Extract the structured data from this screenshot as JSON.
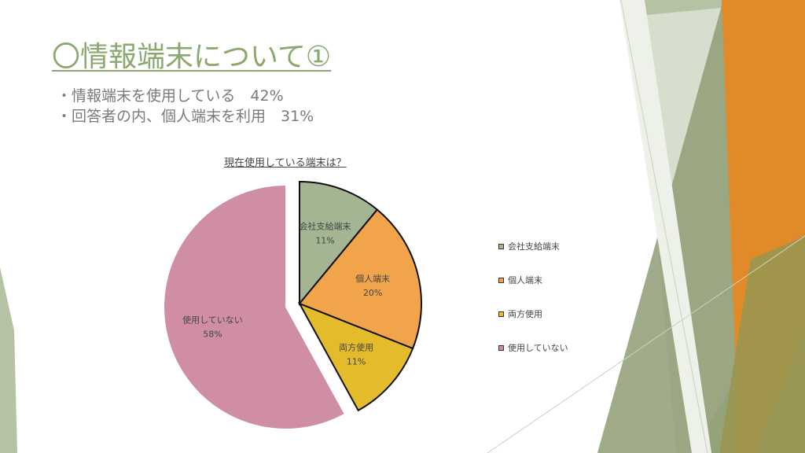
{
  "slide": {
    "title": "〇情報端末について①",
    "bullets": [
      "・情報端末を使用している　42%",
      "・回答者の内、個人端末を利用　31%"
    ]
  },
  "chart_data": {
    "type": "pie",
    "title": "現在使用している端末は？",
    "categories": [
      "会社支給端末",
      "個人端末",
      "両方使用",
      "使用していない"
    ],
    "values": [
      11,
      20,
      11,
      58
    ],
    "labels": [
      "11%",
      "20%",
      "11%",
      "58%"
    ],
    "colors": [
      "#a3b592",
      "#f2a44a",
      "#e4bb2a",
      "#cf8ea4"
    ],
    "exploded": "使用していない",
    "legend_position": "right"
  }
}
